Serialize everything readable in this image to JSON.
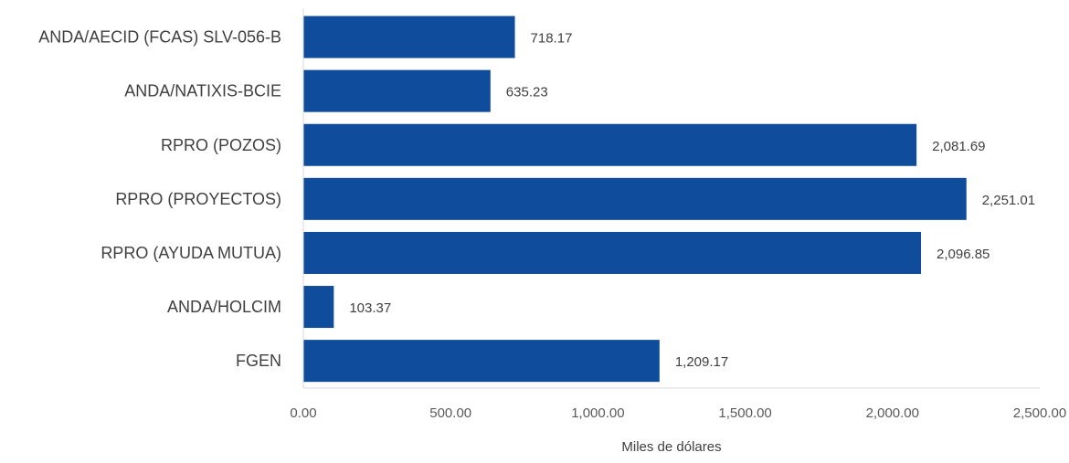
{
  "chart_data": {
    "type": "bar",
    "orientation": "horizontal",
    "categories": [
      "ANDA/AECID (FCAS) SLV-056-B",
      "ANDA/NATIXIS-BCIE",
      "RPRO (POZOS)",
      "RPRO (PROYECTOS)",
      "RPRO (AYUDA MUTUA)",
      "ANDA/HOLCIM",
      "FGEN"
    ],
    "values": [
      718.17,
      635.23,
      2081.69,
      2251.01,
      2096.85,
      103.37,
      1209.17
    ],
    "data_labels": [
      "718.17",
      "635.23",
      "2,081.69",
      "2,251.01",
      "2,096.85",
      "103.37",
      "1,209.17"
    ],
    "xlabel": "Miles de dólares",
    "ylabel": "",
    "xlim": [
      0,
      2500
    ],
    "x_ticks": [
      0,
      500,
      1000,
      1500,
      2000,
      2500
    ],
    "x_tick_labels": [
      "0.00",
      "500.00",
      "1,000.00",
      "1,500.00",
      "2,000.00",
      "2,500.00"
    ],
    "bar_color": "#0f4c9c",
    "grid": false,
    "legend": "none"
  }
}
